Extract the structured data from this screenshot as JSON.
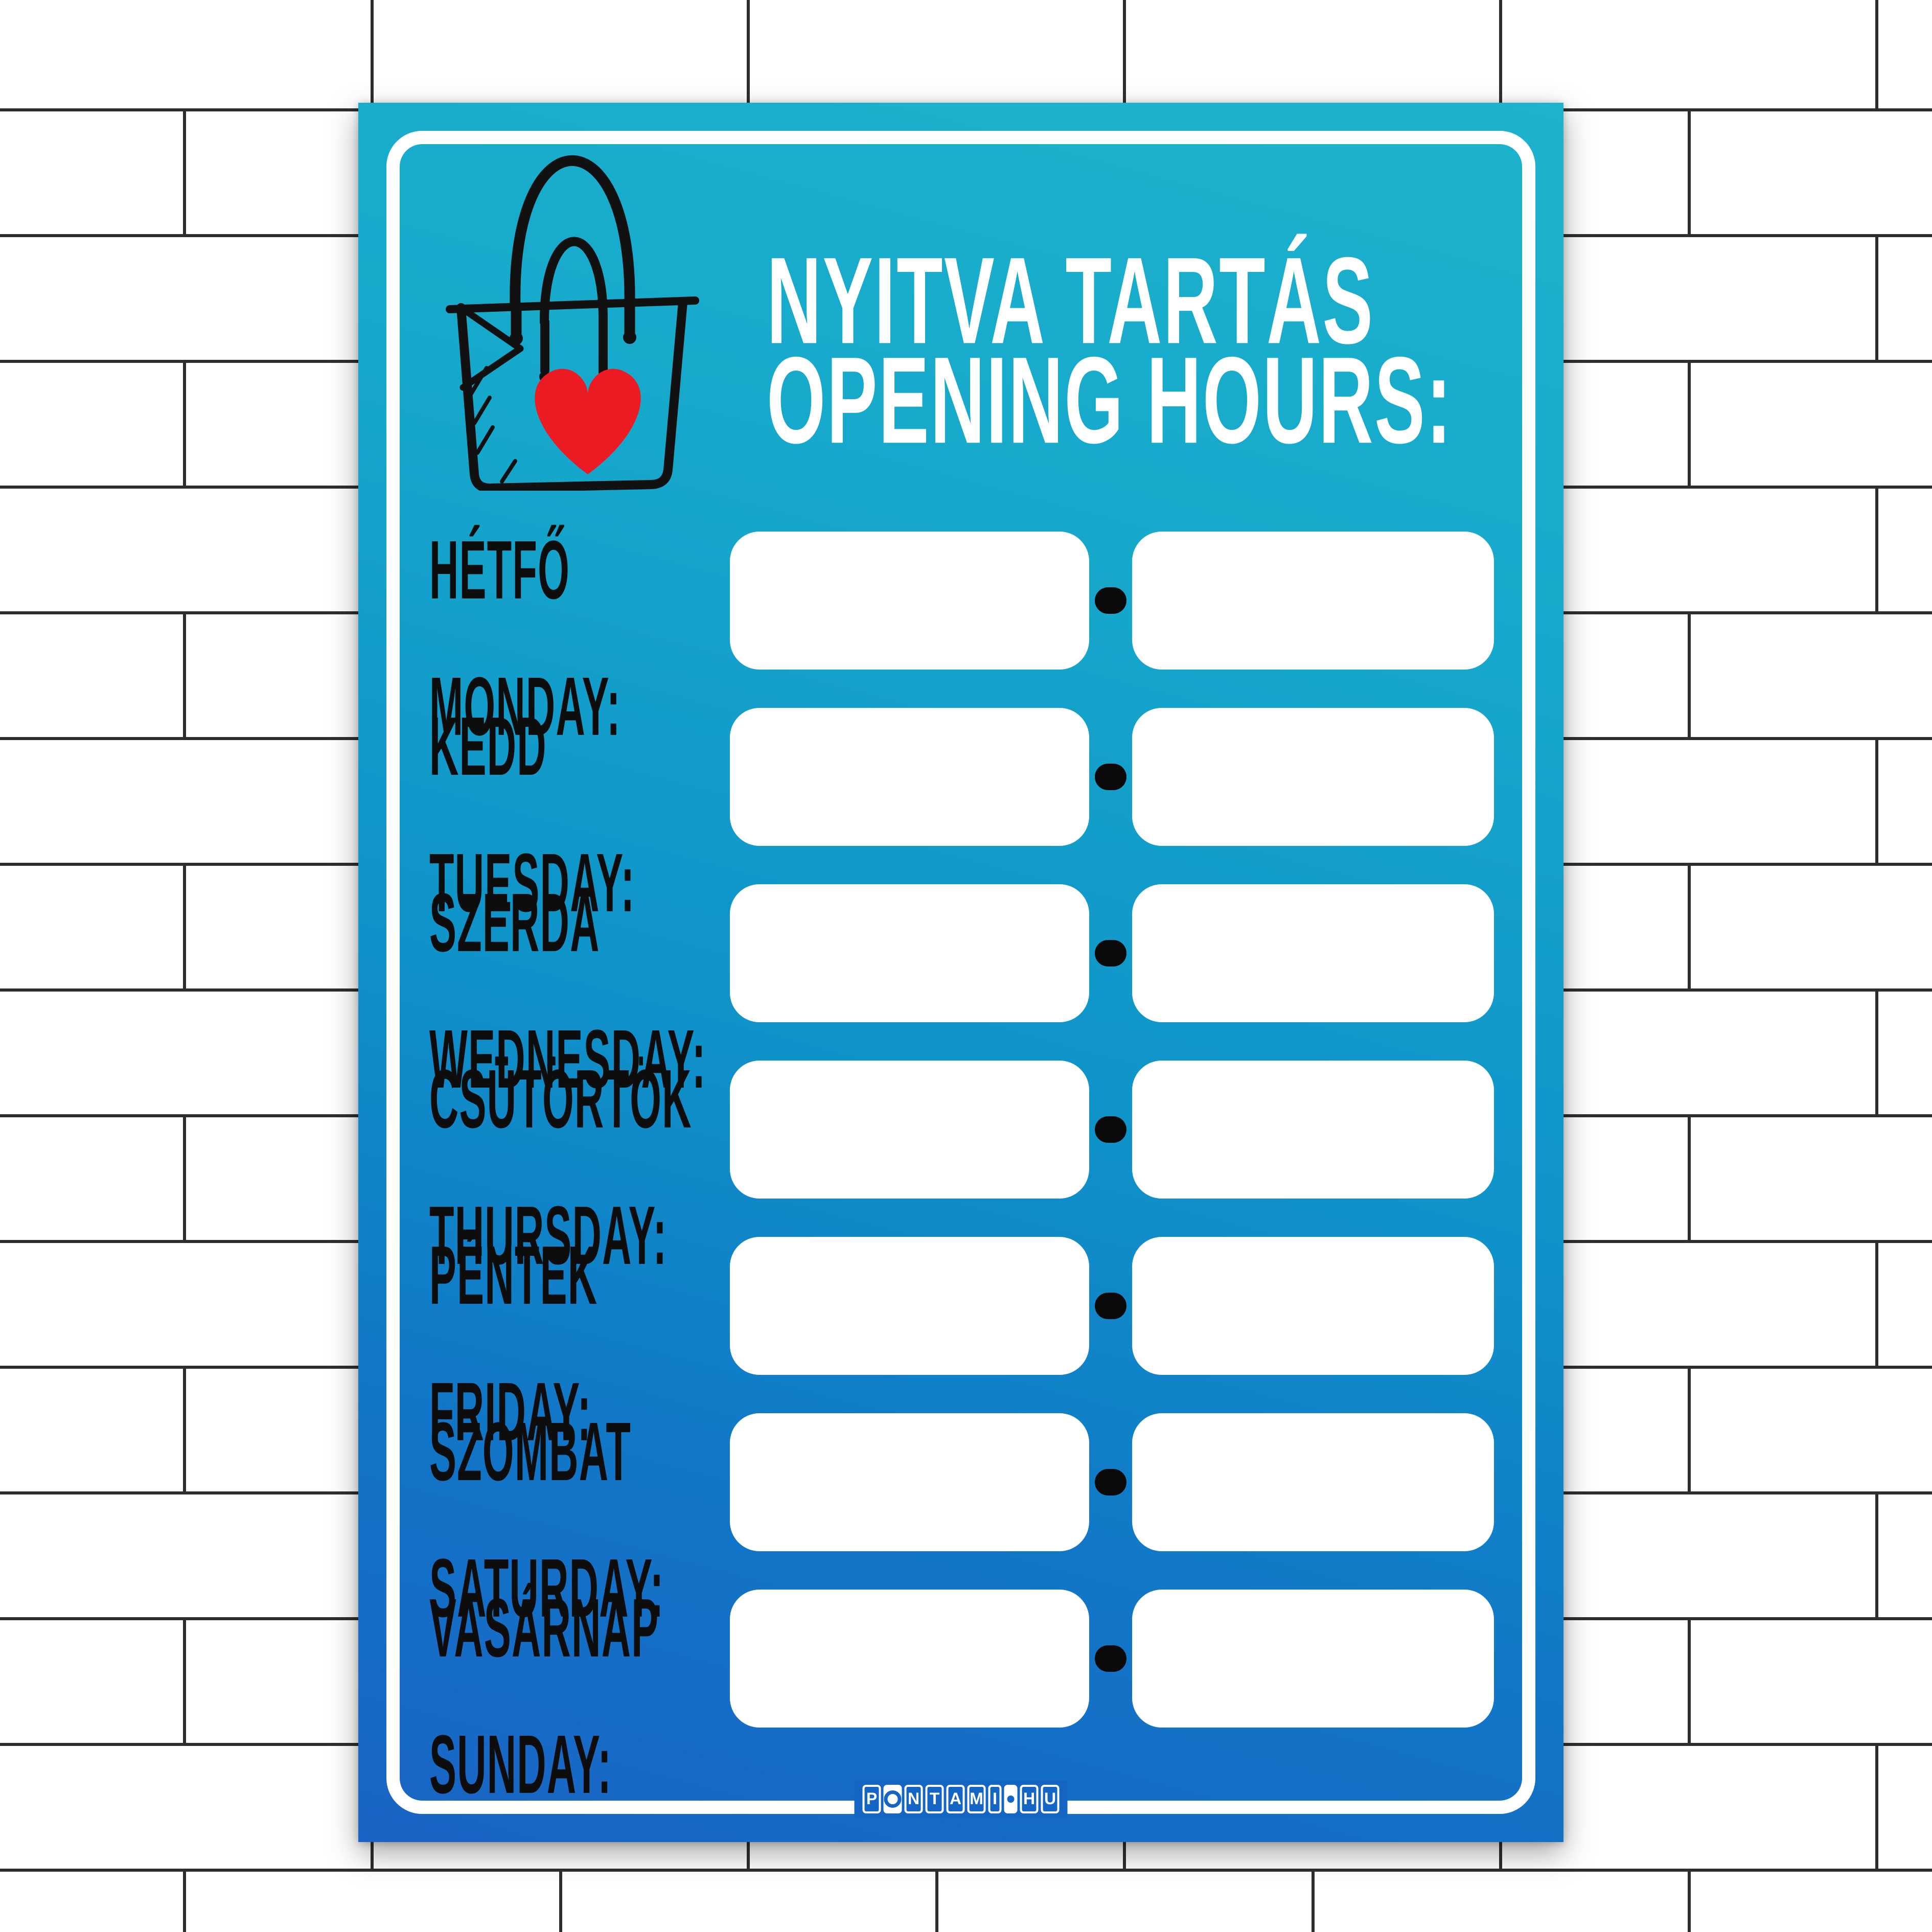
{
  "scene": {
    "wall": {
      "brick_color": "#ffffff",
      "mortar_color": "#2e2e2e"
    }
  },
  "poster": {
    "title": {
      "line1": "NYITVA TARTÁS",
      "line2": "OPENING HOURS:"
    },
    "icon": {
      "name": "shopping-bag-with-heart",
      "outline_color": "#111111",
      "heart_color": "#ec1b23"
    },
    "days": [
      {
        "hu": "HÉTFŐ",
        "en": "MONDAY:",
        "open": "",
        "close": ""
      },
      {
        "hu": "KEDD",
        "en": "TUESDAY:",
        "open": "",
        "close": ""
      },
      {
        "hu": "SZERDA",
        "en": "WEDNESDAY:",
        "open": "",
        "close": ""
      },
      {
        "hu": "CSÜTÖRTÖK",
        "en": "THURSDAY:",
        "open": "",
        "close": ""
      },
      {
        "hu": "PÉNTEK",
        "en": "FRIDAY:",
        "open": "",
        "close": ""
      },
      {
        "hu": "SZOMBAT",
        "en": "SATURDAY:",
        "open": "",
        "close": ""
      },
      {
        "hu": "VASÁRNAP",
        "en": "SUNDAY:",
        "open": "",
        "close": ""
      }
    ],
    "time_separator": "-",
    "footer_logo": {
      "text": "PONTAMI•HU",
      "tiles": [
        {
          "ch": "P"
        },
        {
          "ch": "O",
          "variant": "ring"
        },
        {
          "ch": "N"
        },
        {
          "ch": "T"
        },
        {
          "ch": "A"
        },
        {
          "ch": "M"
        },
        {
          "ch": "I",
          "narrow": true
        },
        {
          "ch": "•",
          "variant": "dot",
          "narrow": true
        },
        {
          "ch": "H"
        },
        {
          "ch": "U"
        }
      ]
    },
    "colors": {
      "gradient_top": "#1db3cd",
      "gradient_middle": "#0f93c9",
      "gradient_bottom": "#1a63c4",
      "frame": "#ffffff",
      "field": "#ffffff",
      "dash": "#0a0a0a",
      "label_text": "#0d0d0d",
      "title_text": "#ffffff",
      "logo_blue": "#1565c5"
    }
  }
}
